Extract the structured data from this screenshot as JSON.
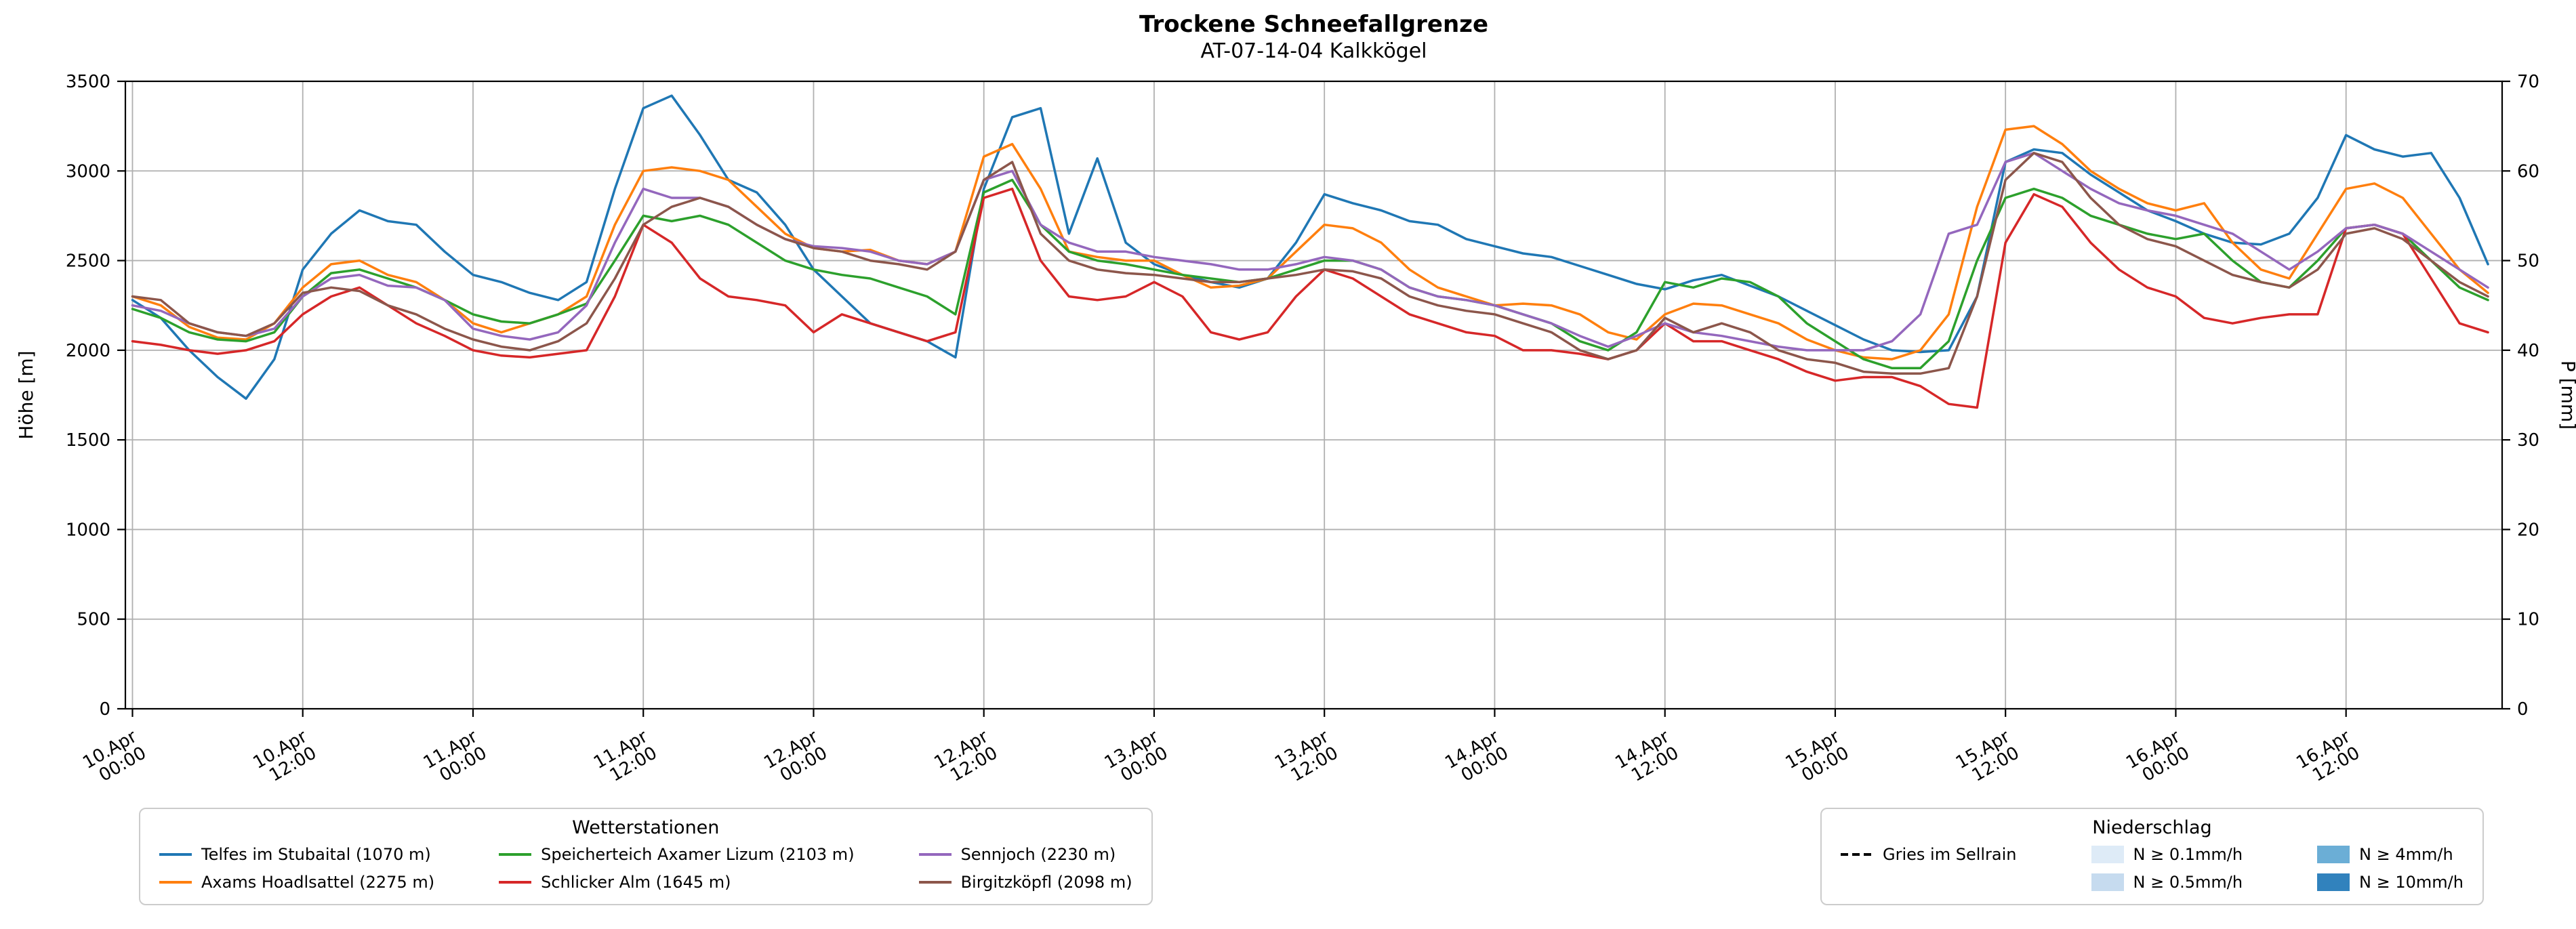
{
  "title": "Trockene Schneefallgrenze",
  "subtitle": "AT-07-14-04 Kalkkögel",
  "chart_data": {
    "type": "line",
    "title": "Trockene Schneefallgrenze",
    "subtitle": "AT-07-14-04 Kalkkögel",
    "xlabel": "",
    "ylabel_left": "Höhe [m]",
    "ylabel_right": "P [mm]",
    "ylim_left": [
      0,
      3500
    ],
    "ylim_right": [
      0,
      70
    ],
    "yticks_left": [
      0,
      500,
      1000,
      1500,
      2000,
      2500,
      3000,
      3500
    ],
    "yticks_right": [
      0,
      10,
      20,
      30,
      40,
      50,
      60,
      70
    ],
    "grid": true,
    "legend_position": "below",
    "x_unit": "hours since 10.Apr 00:00",
    "xlim_hours": [
      -0.5,
      167
    ],
    "xticks": [
      {
        "t": 0,
        "date": "10.Apr",
        "time": "00:00"
      },
      {
        "t": 12,
        "date": "10.Apr",
        "time": "12:00"
      },
      {
        "t": 24,
        "date": "11.Apr",
        "time": "00:00"
      },
      {
        "t": 36,
        "date": "11.Apr",
        "time": "12:00"
      },
      {
        "t": 48,
        "date": "12.Apr",
        "time": "00:00"
      },
      {
        "t": 60,
        "date": "12.Apr",
        "time": "12:00"
      },
      {
        "t": 72,
        "date": "13.Apr",
        "time": "00:00"
      },
      {
        "t": 84,
        "date": "13.Apr",
        "time": "12:00"
      },
      {
        "t": 96,
        "date": "14.Apr",
        "time": "00:00"
      },
      {
        "t": 108,
        "date": "14.Apr",
        "time": "12:00"
      },
      {
        "t": 120,
        "date": "15.Apr",
        "time": "00:00"
      },
      {
        "t": 132,
        "date": "15.Apr",
        "time": "12:00"
      },
      {
        "t": 144,
        "date": "16.Apr",
        "time": "00:00"
      },
      {
        "t": 156,
        "date": "16.Apr",
        "time": "12:00"
      }
    ],
    "x_hours": [
      0,
      2,
      4,
      6,
      8,
      10,
      12,
      14,
      16,
      18,
      20,
      22,
      24,
      26,
      28,
      30,
      32,
      34,
      36,
      38,
      40,
      42,
      44,
      46,
      48,
      50,
      52,
      54,
      56,
      58,
      60,
      62,
      64,
      66,
      68,
      70,
      72,
      74,
      76,
      78,
      80,
      82,
      84,
      86,
      88,
      90,
      92,
      94,
      96,
      98,
      100,
      102,
      104,
      106,
      108,
      110,
      112,
      114,
      116,
      118,
      120,
      122,
      124,
      126,
      128,
      130,
      132,
      134,
      136,
      138,
      140,
      142,
      144,
      146,
      148,
      150,
      152,
      154,
      156,
      158,
      160,
      162,
      164,
      166
    ],
    "series": [
      {
        "name": "Telfes im Stubaital (1070 m)",
        "color": "#1f77b4",
        "values": [
          2280,
          2180,
          2000,
          1850,
          1730,
          1950,
          2450,
          2650,
          2780,
          2720,
          2700,
          2550,
          2420,
          2380,
          2320,
          2280,
          2380,
          2900,
          3350,
          3420,
          3200,
          2950,
          2880,
          2700,
          2450,
          2300,
          2150,
          2100,
          2050,
          1960,
          2900,
          3300,
          3350,
          2650,
          3070,
          2600,
          2480,
          2420,
          2380,
          2350,
          2400,
          2600,
          2870,
          2820,
          2780,
          2720,
          2700,
          2620,
          2580,
          2540,
          2520,
          2470,
          2420,
          2370,
          2340,
          2390,
          2420,
          2360,
          2300,
          2220,
          2140,
          2060,
          2000,
          1990,
          2000,
          2300,
          3050,
          3120,
          3100,
          2980,
          2880,
          2780,
          2720,
          2650,
          2600,
          2590,
          2650,
          2850,
          3200,
          3120,
          3080,
          3100,
          2850,
          2480
        ]
      },
      {
        "name": "Axams Hoadlsattel (2275 m)",
        "color": "#ff7f0e",
        "values": [
          2300,
          2250,
          2130,
          2070,
          2060,
          2150,
          2350,
          2480,
          2500,
          2420,
          2380,
          2280,
          2150,
          2100,
          2150,
          2200,
          2300,
          2700,
          3000,
          3020,
          3000,
          2950,
          2800,
          2650,
          2570,
          2550,
          2560,
          2500,
          2480,
          2550,
          3080,
          3150,
          2900,
          2550,
          2520,
          2500,
          2500,
          2420,
          2350,
          2360,
          2400,
          2550,
          2700,
          2680,
          2600,
          2450,
          2350,
          2300,
          2250,
          2260,
          2250,
          2200,
          2100,
          2060,
          2200,
          2260,
          2250,
          2200,
          2150,
          2060,
          2000,
          1960,
          1950,
          2000,
          2200,
          2800,
          3230,
          3250,
          3150,
          3000,
          2900,
          2820,
          2780,
          2820,
          2600,
          2450,
          2400,
          2650,
          2900,
          2930,
          2850,
          2650,
          2450,
          2320
        ]
      },
      {
        "name": "Speicherteich Axamer Lizum (2103 m)",
        "color": "#2ca02c",
        "values": [
          2230,
          2180,
          2100,
          2060,
          2050,
          2100,
          2300,
          2430,
          2450,
          2400,
          2350,
          2280,
          2200,
          2160,
          2150,
          2200,
          2260,
          2500,
          2750,
          2720,
          2750,
          2700,
          2600,
          2500,
          2450,
          2420,
          2400,
          2350,
          2300,
          2200,
          2880,
          2950,
          2700,
          2550,
          2500,
          2480,
          2450,
          2420,
          2400,
          2380,
          2400,
          2450,
          2500,
          2500,
          2450,
          2350,
          2300,
          2280,
          2250,
          2200,
          2150,
          2050,
          2000,
          2100,
          2380,
          2350,
          2400,
          2380,
          2300,
          2150,
          2050,
          1950,
          1900,
          1900,
          2050,
          2500,
          2850,
          2900,
          2850,
          2750,
          2700,
          2650,
          2620,
          2650,
          2500,
          2380,
          2350,
          2500,
          2680,
          2700,
          2650,
          2500,
          2350,
          2280
        ]
      },
      {
        "name": "Schlicker Alm (1645 m)",
        "color": "#d62728",
        "values": [
          2050,
          2030,
          2000,
          1980,
          2000,
          2050,
          2200,
          2300,
          2350,
          2250,
          2150,
          2080,
          2000,
          1970,
          1960,
          1980,
          2000,
          2300,
          2700,
          2600,
          2400,
          2300,
          2280,
          2250,
          2100,
          2200,
          2150,
          2100,
          2050,
          2100,
          2850,
          2900,
          2500,
          2300,
          2280,
          2300,
          2380,
          2300,
          2100,
          2060,
          2100,
          2300,
          2450,
          2400,
          2300,
          2200,
          2150,
          2100,
          2080,
          2000,
          2000,
          1980,
          1950,
          2000,
          2150,
          2050,
          2050,
          2000,
          1950,
          1880,
          1830,
          1850,
          1850,
          1800,
          1700,
          1680,
          2600,
          2870,
          2800,
          2600,
          2450,
          2350,
          2300,
          2180,
          2150,
          2180,
          2200,
          2200,
          2680,
          2700,
          2650,
          2400,
          2150,
          2100
        ]
      },
      {
        "name": "Sennjoch (2230 m)",
        "color": "#9467bd",
        "values": [
          2250,
          2220,
          2150,
          2100,
          2080,
          2120,
          2300,
          2400,
          2420,
          2360,
          2350,
          2280,
          2120,
          2080,
          2060,
          2100,
          2250,
          2600,
          2900,
          2850,
          2850,
          2800,
          2700,
          2620,
          2580,
          2570,
          2550,
          2500,
          2480,
          2550,
          2950,
          3000,
          2700,
          2600,
          2550,
          2550,
          2520,
          2500,
          2480,
          2450,
          2450,
          2480,
          2520,
          2500,
          2450,
          2350,
          2300,
          2280,
          2250,
          2200,
          2150,
          2080,
          2020,
          2080,
          2150,
          2100,
          2080,
          2050,
          2020,
          2000,
          2000,
          2000,
          2050,
          2200,
          2650,
          2700,
          3050,
          3100,
          3000,
          2900,
          2820,
          2780,
          2750,
          2700,
          2650,
          2550,
          2450,
          2550,
          2680,
          2700,
          2650,
          2550,
          2450,
          2350
        ]
      },
      {
        "name": "Birgitzköpfl (2098 m)",
        "color": "#8c564b",
        "values": [
          2300,
          2280,
          2150,
          2100,
          2080,
          2150,
          2320,
          2350,
          2330,
          2250,
          2200,
          2120,
          2060,
          2020,
          2000,
          2050,
          2150,
          2400,
          2700,
          2800,
          2850,
          2800,
          2700,
          2620,
          2570,
          2550,
          2500,
          2480,
          2450,
          2550,
          2950,
          3050,
          2650,
          2500,
          2450,
          2430,
          2420,
          2400,
          2380,
          2380,
          2400,
          2420,
          2450,
          2440,
          2400,
          2300,
          2250,
          2220,
          2200,
          2150,
          2100,
          2000,
          1950,
          2000,
          2180,
          2100,
          2150,
          2100,
          2000,
          1950,
          1930,
          1880,
          1870,
          1870,
          1900,
          2300,
          2950,
          3100,
          3050,
          2850,
          2700,
          2620,
          2580,
          2500,
          2420,
          2380,
          2350,
          2450,
          2650,
          2680,
          2620,
          2500,
          2380,
          2300
        ]
      }
    ],
    "legend_stations": {
      "title": "Wetterstationen"
    },
    "legend_precip": {
      "title": "Niederschlag",
      "line_entry": {
        "label": "Gries im Sellrain",
        "color": "#000000",
        "dashed": true
      },
      "patches": [
        {
          "label": "N ≥ 0.1mm/h",
          "color": "#deebf7"
        },
        {
          "label": "N ≥ 0.5mm/h",
          "color": "#c6dbef"
        },
        {
          "label": "N ≥ 4mm/h",
          "color": "#6baed6"
        },
        {
          "label": "N ≥ 10mm/h",
          "color": "#3182bd"
        }
      ]
    },
    "colors": {
      "grid": "#b0b0b0",
      "axis": "#000000",
      "background": "#ffffff",
      "legend_border": "#cccccc"
    }
  }
}
